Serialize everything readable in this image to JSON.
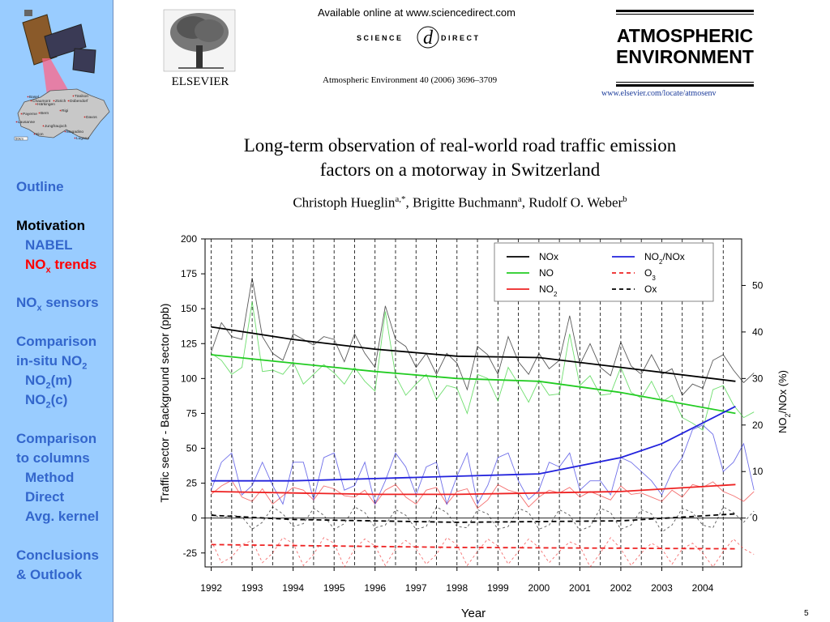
{
  "sidebar": {
    "map_labels": [
      "Chaumont",
      "Basel",
      "Härkingen",
      "Zürich",
      "Tänikon",
      "Dübendorf",
      "Payerne",
      "Bern",
      "Rigi",
      "Davos",
      "Lausanne",
      "Jungfraujoch",
      "Sion",
      "Magadino",
      "Lugano"
    ],
    "map_scale": "50km",
    "nav": {
      "outline": "Outline",
      "motivation": "Motivation",
      "nabel": "NABEL",
      "nox_trends": "NO",
      "nox_trends_sub": "x",
      "nox_trends_tail": " trends",
      "nox_sensors": "NO",
      "nox_sensors_sub": "x",
      "nox_sensors_tail": " sensors",
      "comparison_insitu_1": "Comparison",
      "comparison_insitu_2": "in-situ NO",
      "comparison_insitu_sub": "2",
      "no2m": "NO",
      "no2m_sub": "2",
      "no2m_tail": "(m)",
      "no2c": "NO",
      "no2c_sub": "2",
      "no2c_tail": "(c)",
      "comparison_columns_1": "Comparison",
      "comparison_columns_2": "to columns",
      "method": "Method",
      "direct": "Direct",
      "avg_kernel": "Avg. kernel",
      "conclusions_1": "Conclusions",
      "conclusions_2": "& Outlook"
    }
  },
  "header": {
    "publisher": "ELSEVIER",
    "sd_available": "Available online at www.sciencedirect.com",
    "sd_left": "SCIENCE",
    "sd_right": "DIRECT",
    "sd_mark": "d",
    "journal_cite": "Atmospheric Environment 40 (2006) 3696–3709",
    "journal_line1": "ATMOSPHERIC",
    "journal_line2": "ENVIRONMENT",
    "journal_url": "www.elsevier.com/locate/atmosenv"
  },
  "paper": {
    "title_line1": "Long-term observation of real-world road traffic emission",
    "title_line2": "factors on a motorway in Switzerland",
    "author1": "Christoph Hueglin",
    "author1_sup": "a,",
    "author1_star": "*",
    "author2": ", Brigitte Buchmann",
    "author2_sup": "a",
    "author3": ", Rudolf O. Weber",
    "author3_sup": "b"
  },
  "chart_data": {
    "type": "line",
    "xlabel": "Year",
    "ylabel": "Traffic sector - Background sector (ppb)",
    "y2label": "NO2/NOx (%)",
    "xlim": [
      1991.85,
      2004.95
    ],
    "ylim": [
      -35,
      200
    ],
    "y2lim": [
      -10.5,
      60
    ],
    "x_ticks": [
      "1992",
      "1993",
      "1994",
      "1995",
      "1996",
      "1997",
      "1998",
      "1999",
      "2000",
      "2001",
      "2002",
      "2003",
      "2004"
    ],
    "y_ticks": [
      -25,
      0,
      25,
      50,
      75,
      100,
      125,
      150,
      175,
      200
    ],
    "y2_ticks": [
      0,
      10,
      20,
      30,
      40,
      50
    ],
    "grid": "vertical dashed lines at each semester",
    "legend_position": "top-right",
    "colors": {
      "nox": "#000000",
      "no": "#22cc22",
      "no2": "#ee2222",
      "no2nox": "#2222dd",
      "o3": "#ee2222",
      "ox": "#000000"
    },
    "trend_series": [
      {
        "name": "NOx",
        "style": "solid",
        "color": "#000000",
        "x": [
          1992,
          1994,
          1996,
          1998,
          2000,
          2002,
          2004.8
        ],
        "y": [
          137,
          128,
          121,
          116,
          115,
          108,
          98
        ]
      },
      {
        "name": "NO",
        "style": "solid",
        "color": "#22cc22",
        "x": [
          1992,
          1994,
          1996,
          1998,
          2000,
          2002,
          2004.8
        ],
        "y": [
          117,
          111,
          105,
          100,
          98,
          90,
          75
        ]
      },
      {
        "name": "NO2",
        "style": "solid",
        "color": "#ee2222",
        "x": [
          1992,
          1994,
          1996,
          1998,
          2000,
          2002,
          2004.8
        ],
        "y": [
          19,
          18,
          17,
          17,
          18,
          19,
          24
        ]
      },
      {
        "name": "NO2/NOx",
        "style": "solid",
        "color": "#2222dd",
        "axis": "right",
        "x": [
          1992,
          1994,
          1996,
          1998,
          2000,
          2002,
          2003,
          2004.8
        ],
        "y": [
          8,
          8,
          8.5,
          9,
          9.5,
          13,
          16,
          24
        ]
      },
      {
        "name": "O3",
        "style": "dashed",
        "color": "#ee2222",
        "x": [
          1992,
          1998,
          2004.8
        ],
        "y": [
          -19,
          -21,
          -22
        ]
      },
      {
        "name": "Ox",
        "style": "dashed",
        "color": "#000000",
        "x": [
          1992,
          1994,
          1998,
          2002,
          2004.8
        ],
        "y": [
          2,
          -1,
          -3,
          -2,
          3
        ]
      }
    ],
    "raw_series": [
      {
        "name": "NOx",
        "color": "#000000",
        "x0": 1992,
        "step": 0.25,
        "y": [
          119,
          140,
          130,
          128,
          172,
          130,
          118,
          113,
          132,
          128,
          124,
          130,
          128,
          112,
          132,
          118,
          108,
          152,
          128,
          123,
          108,
          118,
          103,
          118,
          111,
          92,
          123,
          117,
          103,
          130,
          112,
          103,
          118,
          107,
          113,
          145,
          110,
          125,
          108,
          102,
          126,
          109,
          103,
          117,
          103,
          107,
          88,
          96,
          93,
          113,
          117,
          106,
          97,
          104
        ]
      },
      {
        "name": "NO",
        "color": "#22cc22",
        "x0": 1992,
        "step": 0.25,
        "y": [
          118,
          113,
          103,
          108,
          155,
          105,
          106,
          103,
          112,
          96,
          103,
          110,
          104,
          96,
          108,
          98,
          91,
          148,
          102,
          88,
          96,
          103,
          85,
          95,
          93,
          75,
          103,
          100,
          84,
          108,
          96,
          83,
          99,
          88,
          89,
          132,
          95,
          102,
          88,
          89,
          108,
          90,
          86,
          98,
          83,
          88,
          72,
          68,
          63,
          92,
          95,
          81,
          72,
          76
        ]
      },
      {
        "name": "NO2",
        "color": "#ee2222",
        "x0": 1992,
        "step": 0.25,
        "y": [
          17,
          23,
          27,
          15,
          12,
          21,
          10,
          16,
          22,
          20,
          13,
          23,
          21,
          16,
          15,
          20,
          10,
          20,
          24,
          15,
          10,
          20,
          22,
          10,
          19,
          21,
          7,
          13,
          24,
          20,
          18,
          8,
          15,
          20,
          18,
          22,
          15,
          19,
          16,
          13,
          23,
          17,
          18,
          15,
          12,
          20,
          15,
          24,
          22,
          26,
          19,
          16,
          12,
          19
        ]
      },
      {
        "name": "NO2/NOx",
        "color": "#2222dd",
        "axis": "right",
        "x0": 1992,
        "step": 0.25,
        "y": [
          6,
          12,
          14,
          5,
          7,
          12,
          7,
          3,
          12,
          12,
          4,
          13,
          14,
          6,
          7,
          12,
          3,
          8,
          14,
          11,
          5,
          11,
          12,
          3,
          9,
          14,
          3,
          7,
          13,
          14,
          8,
          4,
          6,
          12,
          11,
          14,
          6,
          8,
          8,
          5,
          13,
          12,
          10,
          8,
          5,
          10,
          13,
          19,
          20,
          18,
          10,
          12,
          16,
          6
        ]
      },
      {
        "name": "O3",
        "color": "#ee2222",
        "style": "dashed",
        "x0": 1992,
        "step": 0.25,
        "y": [
          -16,
          -32,
          -28,
          -19,
          -16,
          -32,
          -25,
          -14,
          -18,
          -34,
          -26,
          -14,
          -18,
          -35,
          -22,
          -15,
          -20,
          -34,
          -22,
          -16,
          -22,
          -33,
          -26,
          -14,
          -19,
          -34,
          -24,
          -15,
          -20,
          -33,
          -24,
          -15,
          -21,
          -32,
          -24,
          -17,
          -20,
          -35,
          -25,
          -14,
          -22,
          -34,
          -25,
          -18,
          -22,
          -33,
          -22,
          -18,
          -25,
          -35,
          -24,
          -15,
          -22,
          -26
        ]
      },
      {
        "name": "Ox",
        "color": "#000000",
        "style": "dashed",
        "x0": 1992,
        "step": 0.25,
        "y": [
          3,
          0,
          2,
          1,
          -8,
          -3,
          8,
          3,
          -6,
          -4,
          7,
          2,
          -8,
          -4,
          8,
          4,
          -7,
          -5,
          6,
          2,
          -8,
          -6,
          8,
          4,
          -6,
          -7,
          6,
          3,
          -8,
          -6,
          7,
          4,
          -8,
          -5,
          6,
          2,
          -9,
          -6,
          7,
          4,
          -8,
          -5,
          6,
          3,
          -10,
          -5,
          7,
          4,
          -5,
          -7,
          8,
          4,
          -3,
          5
        ]
      }
    ],
    "legend": [
      {
        "label": "NOx",
        "sub": "",
        "tail": "",
        "color": "#000000",
        "style": "solid"
      },
      {
        "label": "NO",
        "sub": "",
        "tail": "",
        "color": "#22cc22",
        "style": "solid"
      },
      {
        "label": "NO",
        "sub": "2",
        "tail": "",
        "color": "#ee2222",
        "style": "solid"
      },
      {
        "label": "NO",
        "sub": "2",
        "tail": "/NOx",
        "color": "#2222dd",
        "style": "solid"
      },
      {
        "label": "O",
        "sub": "3",
        "tail": "",
        "color": "#ee2222",
        "style": "dashed"
      },
      {
        "label": "Ox",
        "sub": "",
        "tail": "",
        "color": "#000000",
        "style": "dashed"
      }
    ]
  },
  "page_number": "5"
}
